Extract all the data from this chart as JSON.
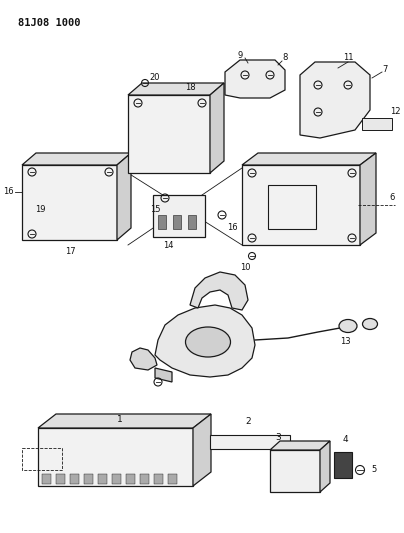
{
  "title": "81J08 1000",
  "bg_color": "#ffffff",
  "line_color": "#1a1a1a",
  "text_color": "#111111",
  "fig_width": 4.04,
  "fig_height": 5.33,
  "dpi": 100,
  "layout": {
    "xlim": [
      0,
      404
    ],
    "ylim": [
      0,
      533
    ]
  },
  "sections": {
    "top_diagram": {
      "y_center": 380,
      "y_range": [
        280,
        533
      ]
    },
    "middle_diagram": {
      "y_center": 220,
      "y_range": [
        160,
        280
      ]
    },
    "bottom_diagram": {
      "y_center": 80,
      "y_range": [
        0,
        160
      ]
    }
  }
}
